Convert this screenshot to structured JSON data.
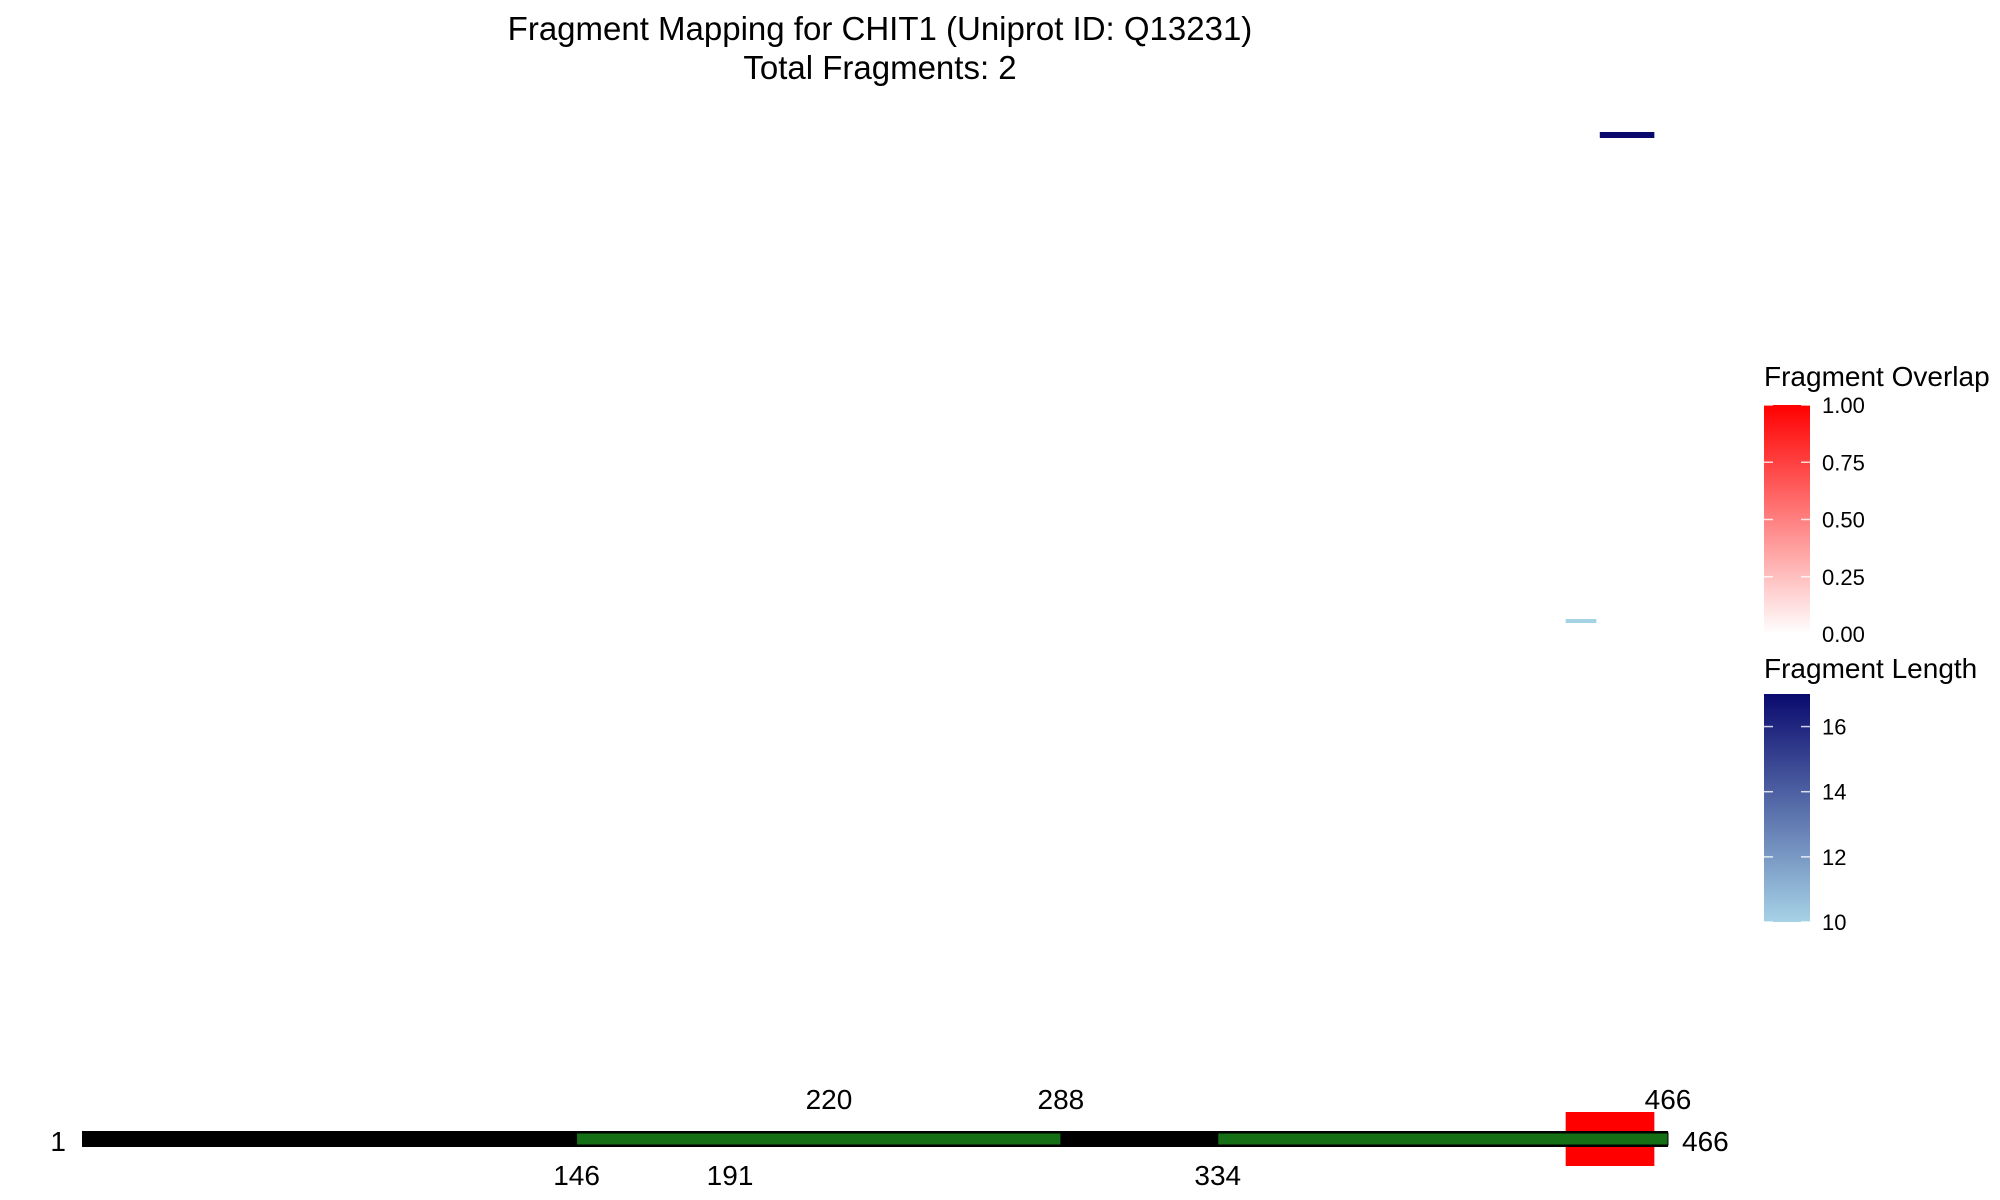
{
  "chart_data": {
    "type": "protein-fragment-map",
    "title": "Fragment Mapping for CHIT1 (Uniprot ID: Q13231)",
    "subtitle": "Total Fragments: 2",
    "protein_range": [
      1,
      466
    ],
    "ends": {
      "start_label": "1",
      "end_label": "466"
    },
    "colors": {
      "backbone": "#000000",
      "domain": "#157015",
      "overlap_high": "#ff0000",
      "overlap_low": "#ffffff",
      "length_high": "#0a0a6e",
      "length_low": "#a6d2e6"
    },
    "domains": [
      {
        "start": 146,
        "end": 288
      },
      {
        "start": 334,
        "end": 466
      }
    ],
    "overlap_regions": [
      {
        "start": 436,
        "end": 462,
        "overlap": 1.0
      }
    ],
    "fragments": [
      {
        "start": 446,
        "end": 462,
        "length": 17,
        "track": 1
      },
      {
        "start": 436,
        "end": 445,
        "length": 10,
        "track": 2
      }
    ],
    "position_labels": [
      {
        "value": 146,
        "text": "146",
        "side": "below"
      },
      {
        "value": 191,
        "text": "191",
        "side": "below"
      },
      {
        "value": 220,
        "text": "220",
        "side": "above"
      },
      {
        "value": 288,
        "text": "288",
        "side": "above"
      },
      {
        "value": 334,
        "text": "334",
        "side": "below"
      },
      {
        "value": 466,
        "text": "466",
        "side": "above"
      }
    ],
    "legends": [
      {
        "title": "Fragment Overlap",
        "range": [
          0,
          1
        ],
        "ticks": [
          0,
          0.25,
          0.5,
          0.75,
          1.0
        ],
        "tick_labels": [
          "0.00",
          "0.25",
          "0.50",
          "0.75",
          "1.00"
        ],
        "color_low": "#ffffff",
        "color_high": "#ff0000"
      },
      {
        "title": "Fragment Length",
        "range": [
          10,
          17
        ],
        "ticks": [
          10,
          12,
          14,
          16
        ],
        "tick_labels": [
          "10",
          "12",
          "14",
          "16"
        ],
        "color_low": "#a6d2e6",
        "color_high": "#0a0a6e"
      }
    ]
  }
}
